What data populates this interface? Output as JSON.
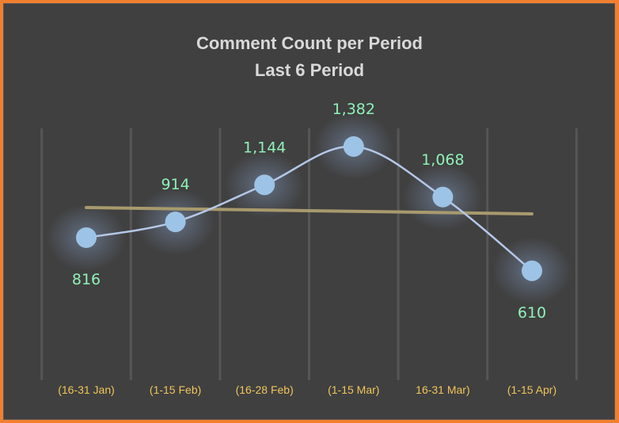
{
  "chart_data": {
    "type": "line",
    "title": "Comment Count per Period",
    "subtitle": "Last 6 Period",
    "categories": [
      "(16-31 Jan)",
      "(1-15 Feb)",
      "(16-28 Feb)",
      "(1-15 Mar)",
      "16-31 Mar)",
      "(1-15 Apr)"
    ],
    "series": [
      {
        "name": "Comment Count",
        "values": [
          816,
          914,
          1144,
          1382,
          1068,
          610
        ],
        "labels": [
          "816",
          "914",
          "1,144",
          "1,382",
          "1,068",
          "610"
        ]
      }
    ],
    "trendline": {
      "type": "linear",
      "start": 1000,
      "end": 960
    },
    "xlabel": "",
    "ylabel": "",
    "ylim": [
      0,
      2300
    ],
    "grid": "vertical",
    "legend": "none",
    "colors": {
      "line": "#b4c7e7",
      "marker": "#9dc3e6",
      "trend": "#a89a6e",
      "label": "#8ff0b8",
      "tick": "#f0c45a",
      "border": "#f07f30",
      "background": "#404040"
    }
  }
}
